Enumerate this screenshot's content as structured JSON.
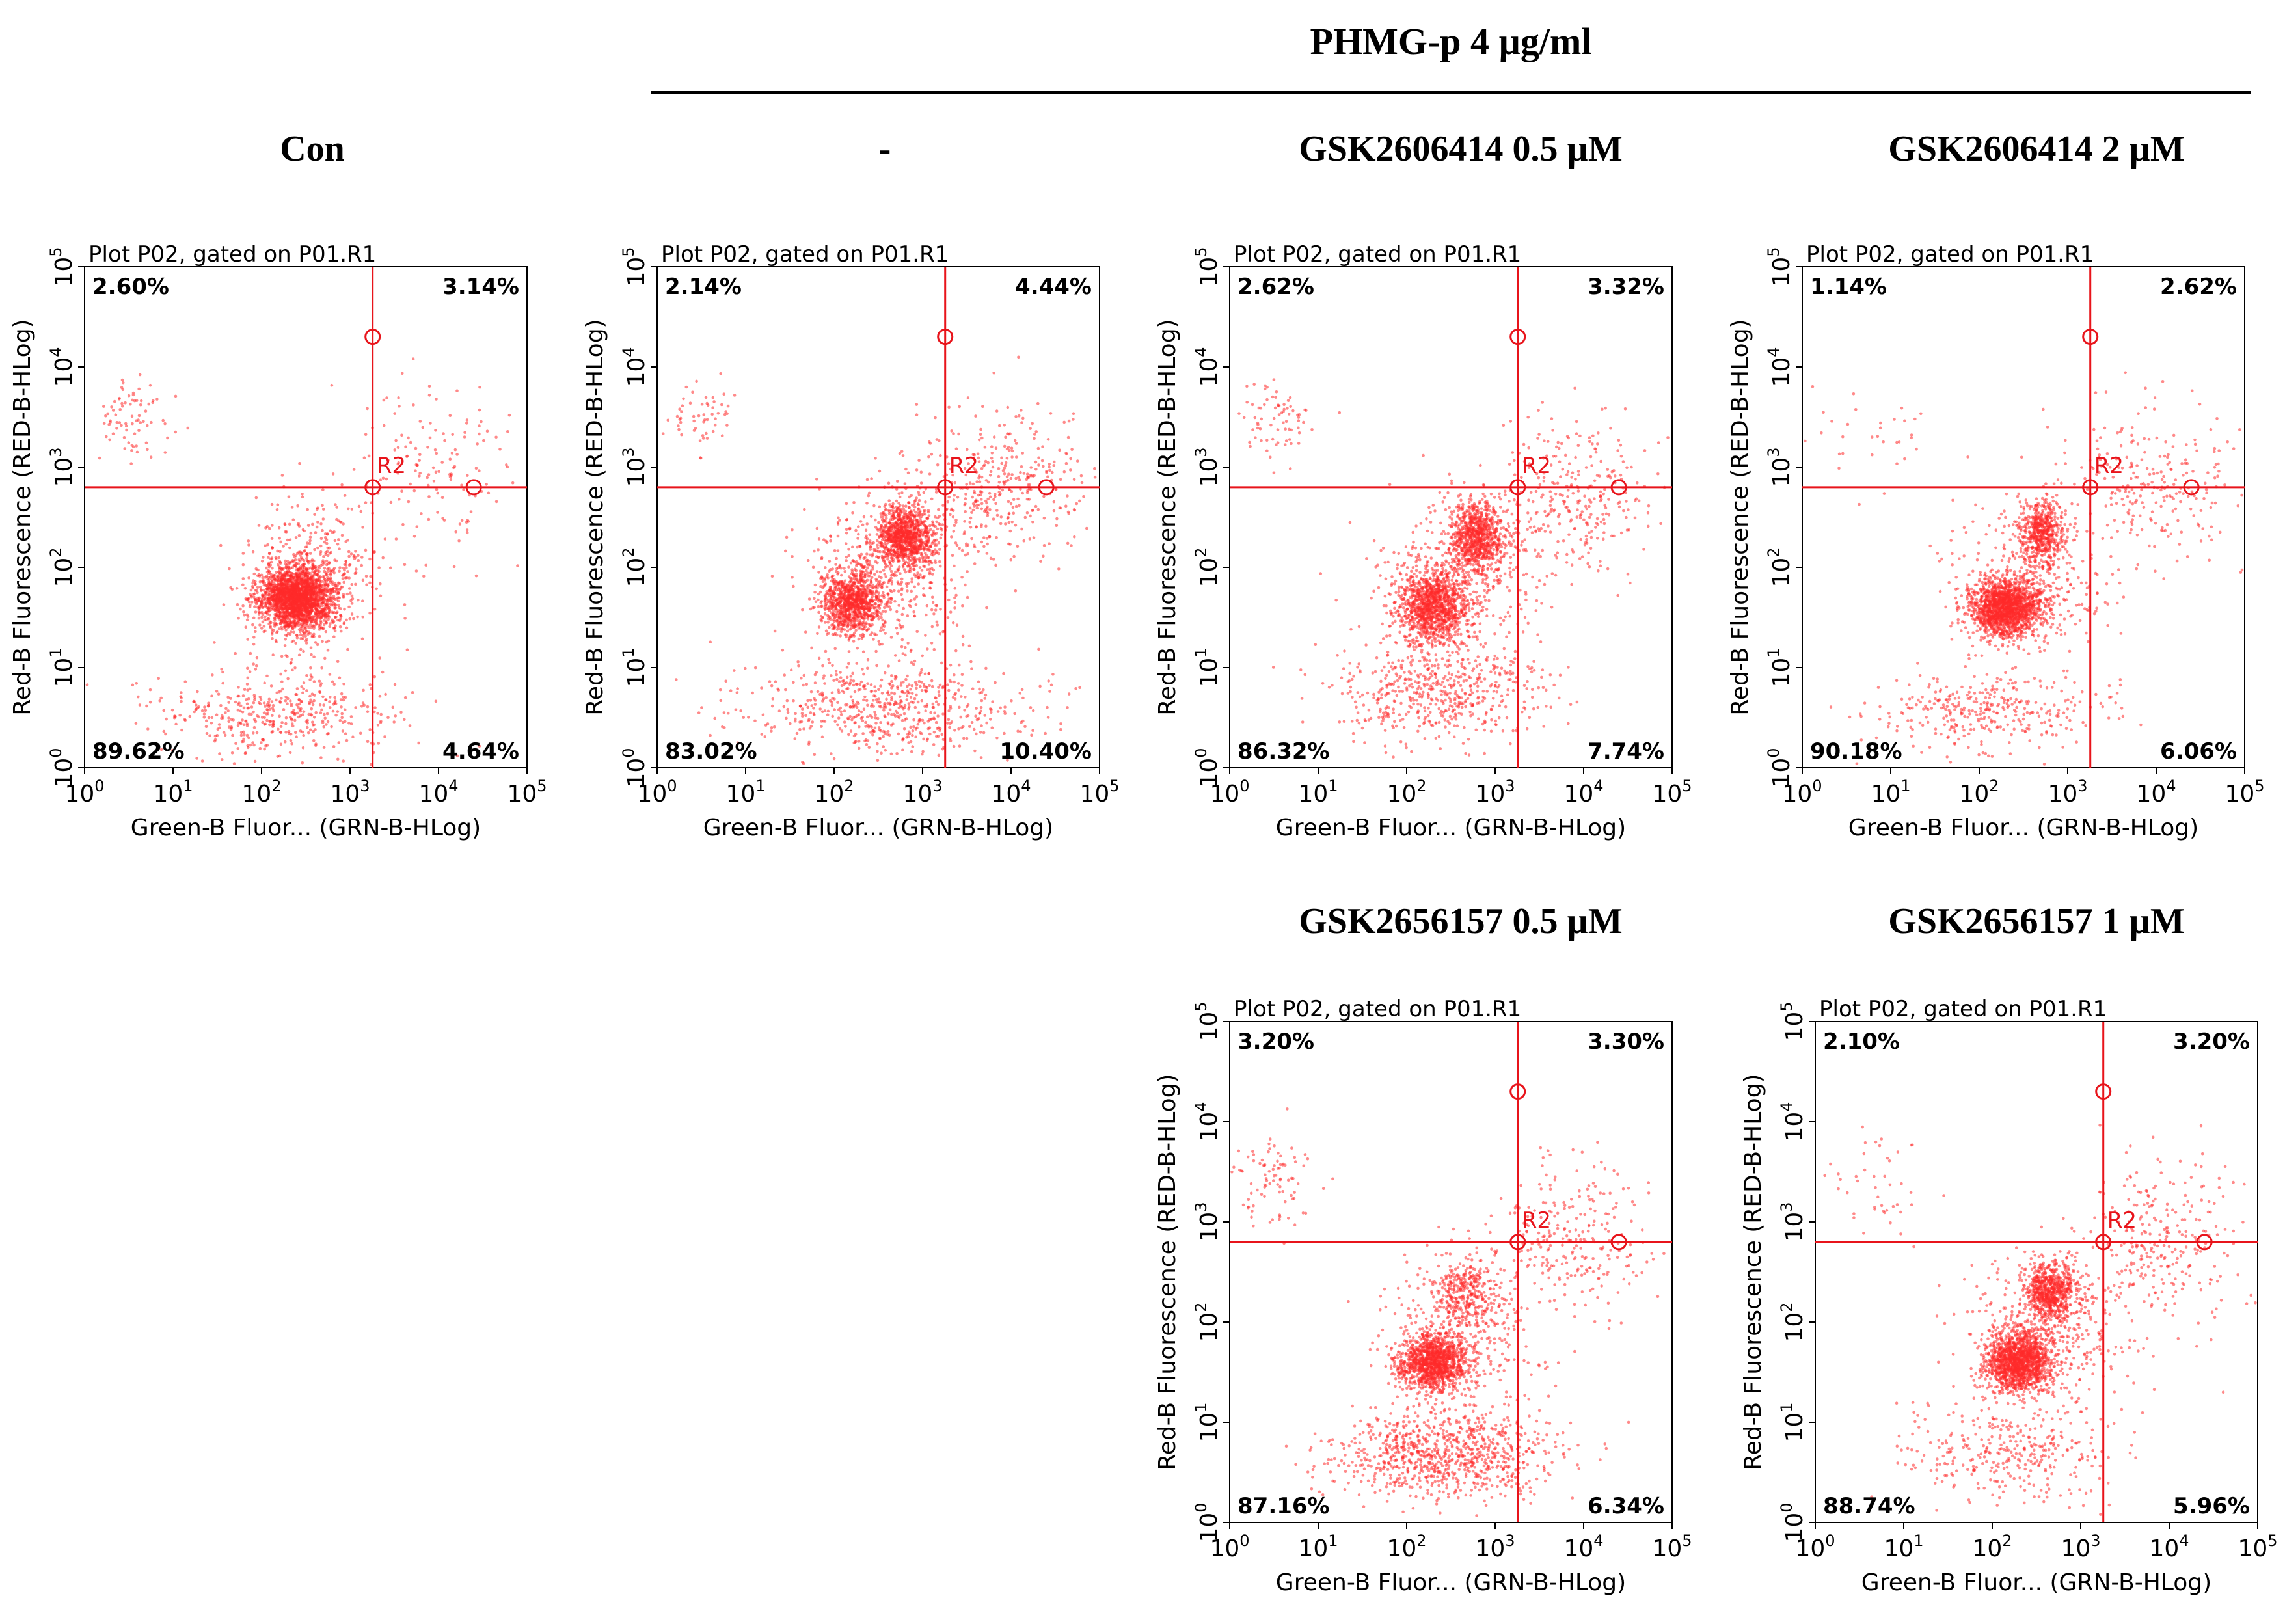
{
  "header": {
    "treatment_label": "PHMG-p 4 µg/ml"
  },
  "colors": {
    "dots": "#ff2a2a",
    "gate": "#e8141b",
    "frame": "#000000",
    "text": "#000000"
  },
  "chart_data": [
    {
      "type": "scatter",
      "panel_title": "Con",
      "plot_title": "Plot P02, gated on P01.R1",
      "xlabel": "Green-B Fluor... (GRN-B-HLog)",
      "ylabel": "Red-B Fluorescence (RED-B-HLog)",
      "x_scale": "log",
      "y_scale": "log",
      "xlim_log10": [
        0,
        5
      ],
      "ylim_log10": [
        0,
        5
      ],
      "x_ticks": [
        {
          "base": "10",
          "exp": "0"
        },
        {
          "base": "10",
          "exp": "1"
        },
        {
          "base": "10",
          "exp": "2"
        },
        {
          "base": "10",
          "exp": "3"
        },
        {
          "base": "10",
          "exp": "4"
        },
        {
          "base": "10",
          "exp": "5"
        }
      ],
      "y_ticks": [
        {
          "base": "10",
          "exp": "0"
        },
        {
          "base": "10",
          "exp": "1"
        },
        {
          "base": "10",
          "exp": "2"
        },
        {
          "base": "10",
          "exp": "3"
        },
        {
          "base": "10",
          "exp": "4"
        },
        {
          "base": "10",
          "exp": "5"
        }
      ],
      "gate": {
        "label": "R2",
        "x_threshold": 1800,
        "y_threshold": 630,
        "handle_top_y": 20000,
        "handle_right_x": 25000
      },
      "quadrants": {
        "upper_left": "2.60%",
        "upper_right": "3.14%",
        "lower_left": "89.62%",
        "lower_right": "4.64%"
      },
      "populations": [
        {
          "name": "live-main",
          "center_log10": [
            2.4,
            1.7
          ],
          "spread_log10": [
            0.2,
            0.16
          ],
          "count": 2200
        },
        {
          "name": "main-diffuse",
          "center_log10": [
            2.55,
            1.85
          ],
          "spread_log10": [
            0.4,
            0.4
          ],
          "count": 500
        },
        {
          "name": "debris",
          "center_log10": [
            2.2,
            0.55
          ],
          "spread_log10": [
            0.7,
            0.22
          ],
          "count": 450
        },
        {
          "name": "necrotic",
          "center_log10": [
            0.5,
            3.5
          ],
          "spread_log10": [
            0.22,
            0.22
          ],
          "count": 80
        },
        {
          "name": "late-apoptotic",
          "center_log10": [
            3.9,
            3.0
          ],
          "spread_log10": [
            0.5,
            0.45
          ],
          "count": 150
        }
      ]
    },
    {
      "type": "scatter",
      "panel_title": "-",
      "plot_title": "Plot P02, gated on P01.R1",
      "xlabel": "Green-B Fluor... (GRN-B-HLog)",
      "ylabel": "Red-B Fluorescence (RED-B-HLog)",
      "x_scale": "log",
      "y_scale": "log",
      "xlim_log10": [
        0,
        5
      ],
      "ylim_log10": [
        0,
        5
      ],
      "x_ticks": [
        {
          "base": "10",
          "exp": "0"
        },
        {
          "base": "10",
          "exp": "1"
        },
        {
          "base": "10",
          "exp": "2"
        },
        {
          "base": "10",
          "exp": "3"
        },
        {
          "base": "10",
          "exp": "4"
        },
        {
          "base": "10",
          "exp": "5"
        }
      ],
      "y_ticks": [
        {
          "base": "10",
          "exp": "0"
        },
        {
          "base": "10",
          "exp": "1"
        },
        {
          "base": "10",
          "exp": "2"
        },
        {
          "base": "10",
          "exp": "3"
        },
        {
          "base": "10",
          "exp": "4"
        },
        {
          "base": "10",
          "exp": "5"
        }
      ],
      "gate": {
        "label": "R2",
        "x_threshold": 1800,
        "y_threshold": 630,
        "handle_top_y": 20000,
        "handle_right_x": 25000
      },
      "quadrants": {
        "upper_left": "2.14%",
        "upper_right": "4.44%",
        "lower_left": "83.02%",
        "lower_right": "10.40%"
      },
      "populations": [
        {
          "name": "live-main",
          "center_log10": [
            2.2,
            1.65
          ],
          "spread_log10": [
            0.17,
            0.15
          ],
          "count": 950
        },
        {
          "name": "early-apoptotic",
          "center_log10": [
            2.8,
            2.3
          ],
          "spread_log10": [
            0.16,
            0.16
          ],
          "count": 950
        },
        {
          "name": "main-diffuse",
          "center_log10": [
            2.6,
            2.0
          ],
          "spread_log10": [
            0.45,
            0.4
          ],
          "count": 500
        },
        {
          "name": "debris",
          "center_log10": [
            2.6,
            0.6
          ],
          "spread_log10": [
            0.8,
            0.25
          ],
          "count": 650
        },
        {
          "name": "necrotic",
          "center_log10": [
            0.5,
            3.5
          ],
          "spread_log10": [
            0.2,
            0.18
          ],
          "count": 55
        },
        {
          "name": "late-apoptotic",
          "center_log10": [
            3.8,
            2.8
          ],
          "spread_log10": [
            0.5,
            0.4
          ],
          "count": 400
        }
      ]
    },
    {
      "type": "scatter",
      "panel_title": "GSK2606414 0.5 µM",
      "plot_title": "Plot P02, gated on P01.R1",
      "xlabel": "Green-B Fluor... (GRN-B-HLog)",
      "ylabel": "Red-B Fluorescence (RED-B-HLog)",
      "x_scale": "log",
      "y_scale": "log",
      "xlim_log10": [
        0,
        5
      ],
      "ylim_log10": [
        0,
        5
      ],
      "x_ticks": [
        {
          "base": "10",
          "exp": "0"
        },
        {
          "base": "10",
          "exp": "1"
        },
        {
          "base": "10",
          "exp": "2"
        },
        {
          "base": "10",
          "exp": "3"
        },
        {
          "base": "10",
          "exp": "4"
        },
        {
          "base": "10",
          "exp": "5"
        }
      ],
      "y_ticks": [
        {
          "base": "10",
          "exp": "0"
        },
        {
          "base": "10",
          "exp": "1"
        },
        {
          "base": "10",
          "exp": "2"
        },
        {
          "base": "10",
          "exp": "3"
        },
        {
          "base": "10",
          "exp": "4"
        },
        {
          "base": "10",
          "exp": "5"
        }
      ],
      "gate": {
        "label": "R2",
        "x_threshold": 1800,
        "y_threshold": 630,
        "handle_top_y": 20000,
        "handle_right_x": 25000
      },
      "quadrants": {
        "upper_left": "2.62%",
        "upper_right": "3.32%",
        "lower_left": "86.32%",
        "lower_right": "7.74%"
      },
      "populations": [
        {
          "name": "live-main",
          "center_log10": [
            2.3,
            1.6
          ],
          "spread_log10": [
            0.2,
            0.18
          ],
          "count": 1100
        },
        {
          "name": "early-apoptotic",
          "center_log10": [
            2.8,
            2.3
          ],
          "spread_log10": [
            0.15,
            0.18
          ],
          "count": 800
        },
        {
          "name": "main-diffuse",
          "center_log10": [
            2.6,
            1.9
          ],
          "spread_log10": [
            0.45,
            0.4
          ],
          "count": 450
        },
        {
          "name": "debris",
          "center_log10": [
            2.4,
            0.75
          ],
          "spread_log10": [
            0.6,
            0.25
          ],
          "count": 550
        },
        {
          "name": "necrotic",
          "center_log10": [
            0.55,
            3.45
          ],
          "spread_log10": [
            0.22,
            0.2
          ],
          "count": 75
        },
        {
          "name": "late-apoptotic",
          "center_log10": [
            3.9,
            2.7
          ],
          "spread_log10": [
            0.45,
            0.4
          ],
          "count": 300
        }
      ]
    },
    {
      "type": "scatter",
      "panel_title": "GSK2606414 2 µM",
      "plot_title": "Plot P02, gated on P01.R1",
      "xlabel": "Green-B Fluor... (GRN-B-HLog)",
      "ylabel": "Red-B Fluorescence (RED-B-HLog)",
      "x_scale": "log",
      "y_scale": "log",
      "xlim_log10": [
        0,
        5
      ],
      "ylim_log10": [
        0,
        5
      ],
      "x_ticks": [
        {
          "base": "10",
          "exp": "0"
        },
        {
          "base": "10",
          "exp": "1"
        },
        {
          "base": "10",
          "exp": "2"
        },
        {
          "base": "10",
          "exp": "3"
        },
        {
          "base": "10",
          "exp": "4"
        },
        {
          "base": "10",
          "exp": "5"
        }
      ],
      "y_ticks": [
        {
          "base": "10",
          "exp": "0"
        },
        {
          "base": "10",
          "exp": "1"
        },
        {
          "base": "10",
          "exp": "2"
        },
        {
          "base": "10",
          "exp": "3"
        },
        {
          "base": "10",
          "exp": "4"
        },
        {
          "base": "10",
          "exp": "5"
        }
      ],
      "gate": {
        "label": "R2",
        "x_threshold": 1800,
        "y_threshold": 630,
        "handle_top_y": 20000,
        "handle_right_x": 25000
      },
      "quadrants": {
        "upper_left": "1.14%",
        "upper_right": "2.62%",
        "lower_left": "90.18%",
        "lower_right": "6.06%"
      },
      "populations": [
        {
          "name": "live-main",
          "center_log10": [
            2.3,
            1.6
          ],
          "spread_log10": [
            0.2,
            0.14
          ],
          "count": 1600
        },
        {
          "name": "early-apoptotic",
          "center_log10": [
            2.7,
            2.35
          ],
          "spread_log10": [
            0.12,
            0.15
          ],
          "count": 500
        },
        {
          "name": "main-diffuse",
          "center_log10": [
            2.6,
            1.9
          ],
          "spread_log10": [
            0.45,
            0.4
          ],
          "count": 400
        },
        {
          "name": "debris",
          "center_log10": [
            2.1,
            0.55
          ],
          "spread_log10": [
            0.65,
            0.2
          ],
          "count": 350
        },
        {
          "name": "necrotic",
          "center_log10": [
            0.7,
            3.3
          ],
          "spread_log10": [
            0.4,
            0.3
          ],
          "count": 35
        },
        {
          "name": "late-apoptotic",
          "center_log10": [
            4.0,
            2.8
          ],
          "spread_log10": [
            0.5,
            0.4
          ],
          "count": 260
        }
      ]
    },
    {
      "type": "scatter",
      "panel_title": "GSK2656157 0.5 µM",
      "plot_title": "Plot P02, gated on P01.R1",
      "xlabel": "Green-B Fluor... (GRN-B-HLog)",
      "ylabel": "Red-B Fluorescence (RED-B-HLog)",
      "x_scale": "log",
      "y_scale": "log",
      "xlim_log10": [
        0,
        5
      ],
      "ylim_log10": [
        0,
        5
      ],
      "x_ticks": [
        {
          "base": "10",
          "exp": "0"
        },
        {
          "base": "10",
          "exp": "1"
        },
        {
          "base": "10",
          "exp": "2"
        },
        {
          "base": "10",
          "exp": "3"
        },
        {
          "base": "10",
          "exp": "4"
        },
        {
          "base": "10",
          "exp": "5"
        }
      ],
      "y_ticks": [
        {
          "base": "10",
          "exp": "0"
        },
        {
          "base": "10",
          "exp": "1"
        },
        {
          "base": "10",
          "exp": "2"
        },
        {
          "base": "10",
          "exp": "3"
        },
        {
          "base": "10",
          "exp": "4"
        },
        {
          "base": "10",
          "exp": "5"
        }
      ],
      "gate": {
        "label": "R2",
        "x_threshold": 1800,
        "y_threshold": 630,
        "handle_top_y": 20000,
        "handle_right_x": 25000
      },
      "quadrants": {
        "upper_left": "3.20%",
        "upper_right": "3.30%",
        "lower_left": "87.16%",
        "lower_right": "6.34%"
      },
      "populations": [
        {
          "name": "live-main",
          "center_log10": [
            2.3,
            1.6
          ],
          "spread_log10": [
            0.18,
            0.14
          ],
          "count": 1200
        },
        {
          "name": "early-apoptotic",
          "center_log10": [
            2.7,
            2.3
          ],
          "spread_log10": [
            0.18,
            0.16
          ],
          "count": 300
        },
        {
          "name": "main-diffuse",
          "center_log10": [
            2.6,
            1.9
          ],
          "spread_log10": [
            0.45,
            0.4
          ],
          "count": 350
        },
        {
          "name": "debris",
          "center_log10": [
            2.4,
            0.65
          ],
          "spread_log10": [
            0.6,
            0.22
          ],
          "count": 900
        },
        {
          "name": "necrotic",
          "center_log10": [
            0.5,
            3.45
          ],
          "spread_log10": [
            0.22,
            0.2
          ],
          "count": 90
        },
        {
          "name": "late-apoptotic",
          "center_log10": [
            3.9,
            2.8
          ],
          "spread_log10": [
            0.45,
            0.4
          ],
          "count": 260
        }
      ]
    },
    {
      "type": "scatter",
      "panel_title": "GSK2656157 1 µM",
      "plot_title": "Plot P02, gated on P01.R1",
      "xlabel": "Green-B Fluor... (GRN-B-HLog)",
      "ylabel": "Red-B Fluorescence (RED-B-HLog)",
      "x_scale": "log",
      "y_scale": "log",
      "xlim_log10": [
        0,
        5
      ],
      "ylim_log10": [
        0,
        5
      ],
      "x_ticks": [
        {
          "base": "10",
          "exp": "0"
        },
        {
          "base": "10",
          "exp": "1"
        },
        {
          "base": "10",
          "exp": "2"
        },
        {
          "base": "10",
          "exp": "3"
        },
        {
          "base": "10",
          "exp": "4"
        },
        {
          "base": "10",
          "exp": "5"
        }
      ],
      "y_ticks": [
        {
          "base": "10",
          "exp": "0"
        },
        {
          "base": "10",
          "exp": "1"
        },
        {
          "base": "10",
          "exp": "2"
        },
        {
          "base": "10",
          "exp": "3"
        },
        {
          "base": "10",
          "exp": "4"
        },
        {
          "base": "10",
          "exp": "5"
        }
      ],
      "gate": {
        "label": "R2",
        "x_threshold": 1800,
        "y_threshold": 630,
        "handle_top_y": 20000,
        "handle_right_x": 25000
      },
      "quadrants": {
        "upper_left": "2.10%",
        "upper_right": "3.20%",
        "lower_left": "88.74%",
        "lower_right": "5.96%"
      },
      "populations": [
        {
          "name": "live-main",
          "center_log10": [
            2.3,
            1.6
          ],
          "spread_log10": [
            0.18,
            0.15
          ],
          "count": 1400
        },
        {
          "name": "early-apoptotic",
          "center_log10": [
            2.65,
            2.3
          ],
          "spread_log10": [
            0.15,
            0.15
          ],
          "count": 700
        },
        {
          "name": "main-diffuse",
          "center_log10": [
            2.6,
            1.9
          ],
          "spread_log10": [
            0.45,
            0.4
          ],
          "count": 400
        },
        {
          "name": "debris",
          "center_log10": [
            2.2,
            0.7
          ],
          "spread_log10": [
            0.6,
            0.25
          ],
          "count": 350
        },
        {
          "name": "necrotic",
          "center_log10": [
            0.7,
            3.4
          ],
          "spread_log10": [
            0.4,
            0.3
          ],
          "count": 45
        },
        {
          "name": "late-apoptotic",
          "center_log10": [
            3.9,
            2.8
          ],
          "spread_log10": [
            0.45,
            0.4
          ],
          "count": 280
        }
      ]
    }
  ]
}
